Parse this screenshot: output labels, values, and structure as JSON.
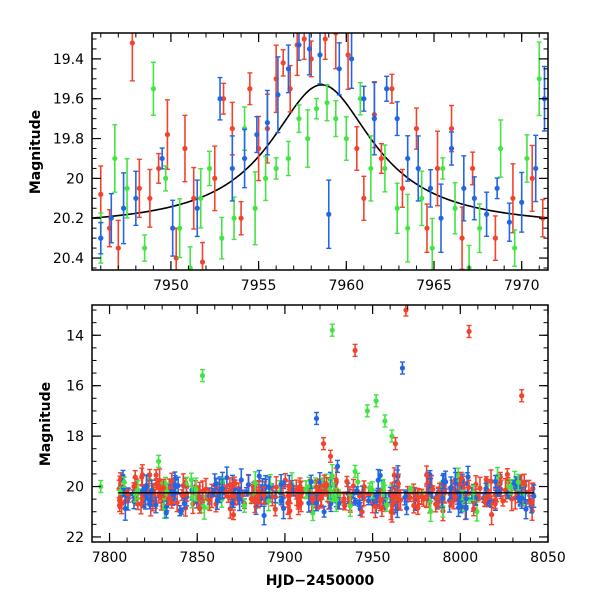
{
  "colors": {
    "red": "#f4432c",
    "green": "#44e444",
    "blue": "#2266e4",
    "model": "#000000"
  },
  "chart_data": [
    {
      "type": "scatter",
      "title": "",
      "xlabel": "",
      "ylabel": "Magnitude",
      "xlim": [
        7945.5,
        7971.5
      ],
      "ylim": [
        20.46,
        19.27
      ],
      "y_inverted": true,
      "xticks": [
        7950,
        7955,
        7960,
        7965,
        7970
      ],
      "xtick_labels": [
        "7950",
        "7955",
        "7960",
        "7965",
        "7970"
      ],
      "yticks": [
        19.4,
        19.6,
        19.8,
        20.0,
        20.2,
        20.4
      ],
      "ytick_labels": [
        "19.4",
        "19.6",
        "19.8",
        "20",
        "20.2",
        "20.4"
      ],
      "model_curve": {
        "baseline": 20.25,
        "peak_time": 7958.6,
        "peak_mag": 19.53,
        "width": 3.6
      },
      "series": [
        {
          "color": "red",
          "points": [
            [
              7946.0,
              20.08
            ],
            [
              7946.5,
              20.25
            ],
            [
              7947.0,
              20.35
            ],
            [
              7947.8,
              19.32
            ],
            [
              7948.2,
              20.05
            ],
            [
              7948.8,
              20.1
            ],
            [
              7949.3,
              19.95
            ],
            [
              7949.8,
              19.78
            ],
            [
              7950.3,
              20.4
            ],
            [
              7950.8,
              19.85
            ],
            [
              7951.3,
              20.1
            ],
            [
              7951.8,
              20.42
            ],
            [
              7952.5,
              20.0
            ],
            [
              7953.0,
              19.6
            ],
            [
              7953.5,
              19.75
            ],
            [
              7954.0,
              20.2
            ],
            [
              7954.5,
              19.55
            ],
            [
              7955.0,
              19.85
            ],
            [
              7955.5,
              19.75
            ],
            [
              7956.0,
              19.5
            ],
            [
              7956.4,
              19.42
            ],
            [
              7956.8,
              19.55
            ],
            [
              7957.2,
              19.33
            ],
            [
              7957.6,
              19.3
            ],
            [
              7958.0,
              19.4
            ],
            [
              7958.8,
              19.3
            ],
            [
              7959.4,
              19.27
            ],
            [
              7960.1,
              19.38
            ],
            [
              7960.6,
              19.85
            ],
            [
              7961.0,
              20.1
            ],
            [
              7961.6,
              19.68
            ],
            [
              7962.0,
              19.9
            ],
            [
              7962.6,
              19.55
            ],
            [
              7963.2,
              20.05
            ],
            [
              7964.0,
              19.75
            ],
            [
              7964.6,
              20.25
            ],
            [
              7965.2,
              19.95
            ],
            [
              7966.0,
              19.75
            ],
            [
              7966.6,
              20.3
            ],
            [
              7967.2,
              19.95
            ],
            [
              7968.5,
              20.3
            ],
            [
              7969.5,
              20.1
            ],
            [
              7970.6,
              20.0
            ],
            [
              7971.2,
              20.2
            ]
          ]
        },
        {
          "color": "green",
          "points": [
            [
              7946.0,
              20.3
            ],
            [
              7946.8,
              19.9
            ],
            [
              7947.5,
              20.05
            ],
            [
              7948.5,
              20.35
            ],
            [
              7949.0,
              19.55
            ],
            [
              7949.7,
              20.0
            ],
            [
              7950.5,
              20.25
            ],
            [
              7951.1,
              20.45
            ],
            [
              7951.7,
              20.1
            ],
            [
              7952.2,
              19.95
            ],
            [
              7952.9,
              20.3
            ],
            [
              7953.6,
              20.2
            ],
            [
              7954.2,
              19.75
            ],
            [
              7954.8,
              20.15
            ],
            [
              7955.4,
              20.0
            ],
            [
              7956.0,
              19.95
            ],
            [
              7956.7,
              19.9
            ],
            [
              7957.3,
              19.7
            ],
            [
              7957.8,
              19.8
            ],
            [
              7958.3,
              19.65
            ],
            [
              7958.9,
              19.62
            ],
            [
              7959.4,
              19.7
            ],
            [
              7960.0,
              19.8
            ],
            [
              7960.8,
              19.6
            ],
            [
              7961.4,
              19.95
            ],
            [
              7962.2,
              19.95
            ],
            [
              7962.9,
              20.15
            ],
            [
              7963.5,
              20.25
            ],
            [
              7964.3,
              20.1
            ],
            [
              7964.9,
              20.35
            ],
            [
              7965.5,
              19.95
            ],
            [
              7966.2,
              20.15
            ],
            [
              7967.0,
              20.45
            ],
            [
              7967.6,
              20.25
            ],
            [
              7968.8,
              19.85
            ],
            [
              7969.6,
              20.35
            ],
            [
              7970.3,
              19.9
            ],
            [
              7971.0,
              19.5
            ]
          ]
        },
        {
          "color": "blue",
          "points": [
            [
              7946.0,
              20.3
            ],
            [
              7946.6,
              20.2
            ],
            [
              7947.3,
              20.15
            ],
            [
              7948.0,
              20.1
            ],
            [
              7949.5,
              19.9
            ],
            [
              7950.1,
              20.25
            ],
            [
              7951.5,
              20.15
            ],
            [
              7952.8,
              19.6
            ],
            [
              7953.5,
              19.95
            ],
            [
              7954.2,
              19.9
            ],
            [
              7954.9,
              19.78
            ],
            [
              7955.5,
              19.72
            ],
            [
              7956.1,
              19.58
            ],
            [
              7956.7,
              19.45
            ],
            [
              7957.3,
              19.33
            ],
            [
              7957.9,
              19.35
            ],
            [
              7958.5,
              19.38
            ],
            [
              7959.0,
              20.18
            ],
            [
              7959.6,
              19.45
            ],
            [
              7960.3,
              19.4
            ],
            [
              7961.0,
              19.6
            ],
            [
              7961.6,
              19.7
            ],
            [
              7962.3,
              19.55
            ],
            [
              7962.9,
              19.7
            ],
            [
              7963.5,
              19.9
            ],
            [
              7964.1,
              19.95
            ],
            [
              7964.8,
              20.05
            ],
            [
              7965.4,
              20.2
            ],
            [
              7966.0,
              19.85
            ],
            [
              7966.7,
              20.05
            ],
            [
              7967.3,
              20.1
            ],
            [
              7968.0,
              20.18
            ],
            [
              7968.6,
              20.05
            ],
            [
              7969.3,
              20.22
            ],
            [
              7970.0,
              20.12
            ],
            [
              7970.8,
              19.95
            ],
            [
              7971.3,
              19.6
            ]
          ]
        }
      ]
    },
    {
      "type": "scatter",
      "title": "",
      "xlabel": "HJD−2450000",
      "ylabel": "Magnitude",
      "xlim": [
        7790,
        8050
      ],
      "ylim": [
        22.2,
        12.8
      ],
      "y_inverted": true,
      "xticks": [
        7800,
        7850,
        7900,
        7950,
        8000,
        8050
      ],
      "xtick_labels": [
        "7800",
        "7850",
        "7900",
        "7950",
        "8000",
        "8050"
      ],
      "yticks": [
        14,
        16,
        18,
        20,
        22
      ],
      "ytick_labels": [
        "14",
        "16",
        "18",
        "20",
        "22"
      ],
      "baseline_mag": 20.25,
      "band_x_range": [
        7805,
        8042
      ],
      "band_y_center": 20.3,
      "band_y_spread": 0.7,
      "outliers": [
        {
          "color": "green",
          "x": 7795,
          "y": 20.0
        },
        {
          "color": "green",
          "x": 7853,
          "y": 15.6
        },
        {
          "color": "green",
          "x": 7828,
          "y": 19.0
        },
        {
          "color": "green",
          "x": 7927,
          "y": 13.8
        },
        {
          "color": "green",
          "x": 7947,
          "y": 17.0
        },
        {
          "color": "green",
          "x": 7952,
          "y": 16.6
        },
        {
          "color": "green",
          "x": 7957,
          "y": 17.4
        },
        {
          "color": "green",
          "x": 7961,
          "y": 18.0
        },
        {
          "color": "green",
          "x": 7940,
          "y": 19.4
        },
        {
          "color": "red",
          "x": 7940,
          "y": 14.6
        },
        {
          "color": "red",
          "x": 7969,
          "y": 13.0
        },
        {
          "color": "red",
          "x": 8005,
          "y": 13.85
        },
        {
          "color": "red",
          "x": 8035,
          "y": 16.4
        },
        {
          "color": "red",
          "x": 7963,
          "y": 18.3
        },
        {
          "color": "red",
          "x": 7922,
          "y": 18.3
        },
        {
          "color": "red",
          "x": 7926,
          "y": 18.8
        },
        {
          "color": "blue",
          "x": 7918,
          "y": 17.3
        },
        {
          "color": "blue",
          "x": 7967,
          "y": 15.3
        },
        {
          "color": "blue",
          "x": 7930,
          "y": 19.2
        },
        {
          "color": "blue",
          "x": 8020,
          "y": 19.8
        }
      ]
    }
  ]
}
